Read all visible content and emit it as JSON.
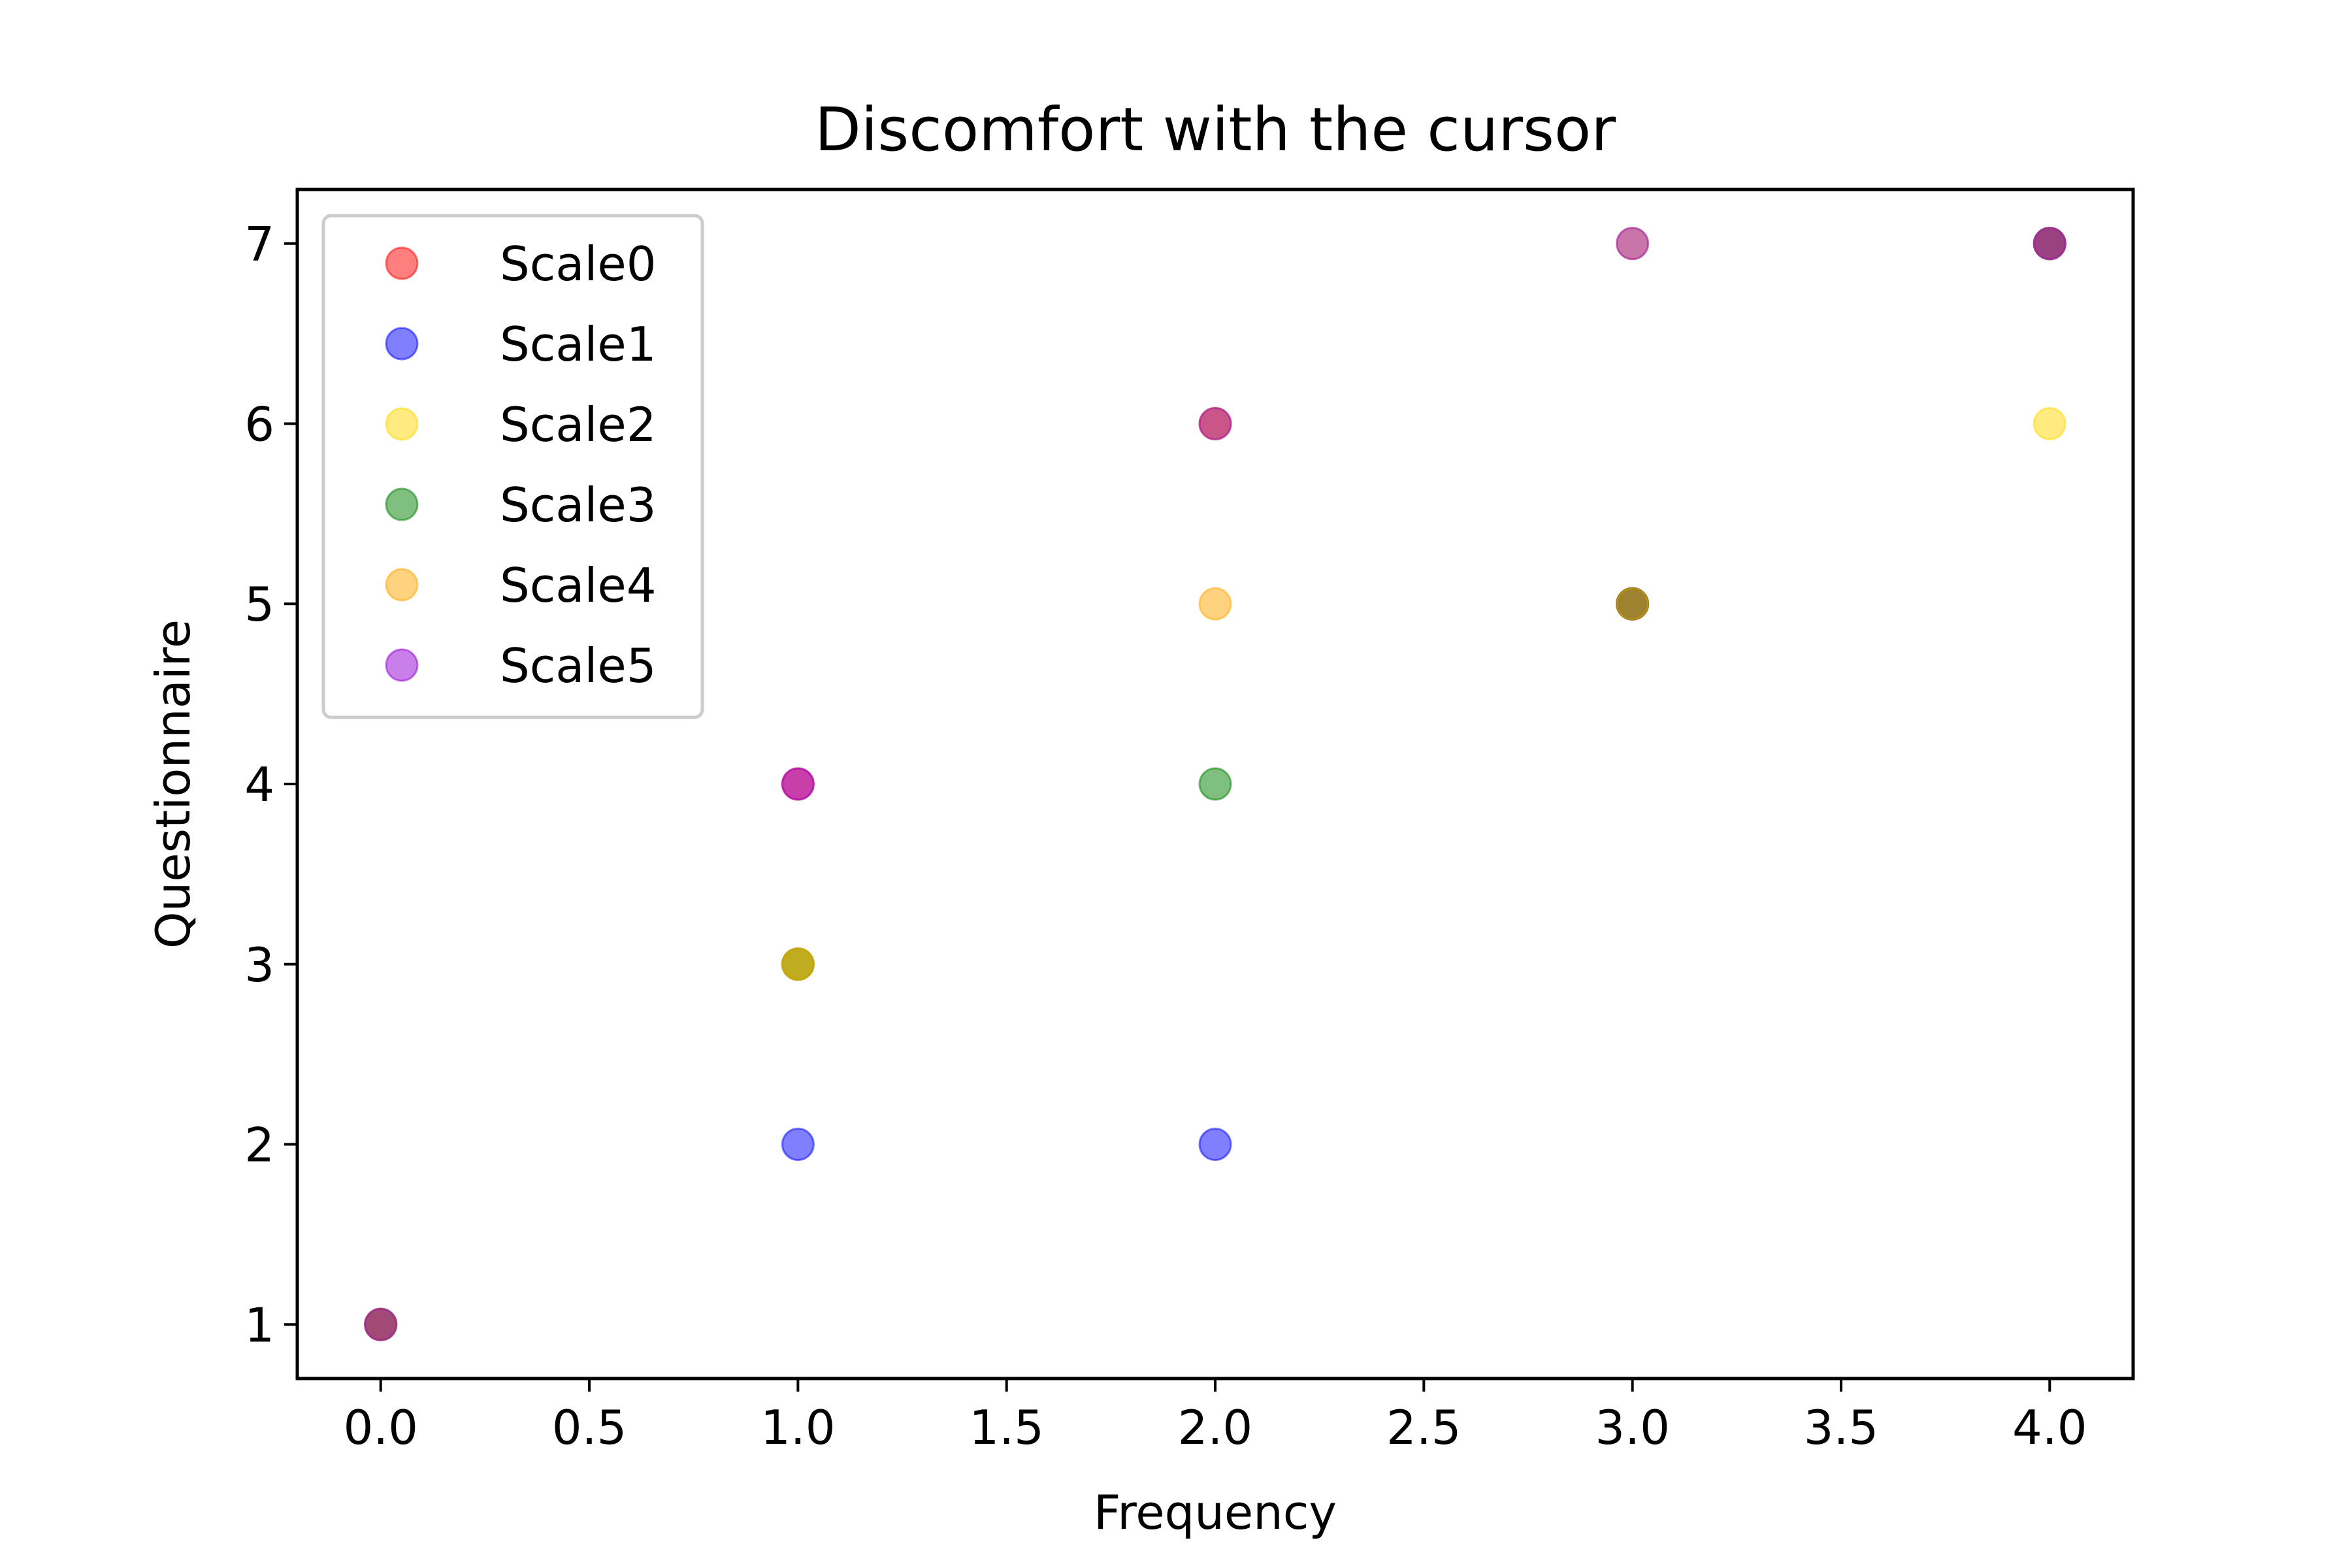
{
  "chart_data": {
    "type": "scatter",
    "title": "Discomfort with the cursor",
    "xlabel": "Frequency",
    "ylabel": "Questionnaire",
    "xlim": [
      -0.2,
      4.2
    ],
    "ylim": [
      0.7,
      7.3
    ],
    "xticks": [
      "0.0",
      "0.5",
      "1.0",
      "1.5",
      "2.0",
      "2.5",
      "3.0",
      "3.5",
      "4.0"
    ],
    "yticks": [
      "1",
      "2",
      "3",
      "4",
      "5",
      "6",
      "7"
    ],
    "grid": false,
    "legend_position": "upper-left",
    "series": [
      {
        "name": "Scale0",
        "color": "#ff0000",
        "x": [
          0,
          1,
          2,
          3,
          4
        ],
        "y": [
          1,
          4,
          6,
          5,
          7
        ]
      },
      {
        "name": "Scale1",
        "color": "#0000ff",
        "x": [
          0,
          1,
          2,
          3,
          4
        ],
        "y": [
          1,
          2,
          2,
          5,
          7
        ]
      },
      {
        "name": "Scale2",
        "color": "#ffd700",
        "x": [
          0,
          1,
          2,
          3,
          4
        ],
        "y": [
          1,
          3,
          6,
          7,
          6
        ]
      },
      {
        "name": "Scale3",
        "color": "#008000",
        "x": [
          0,
          1,
          2,
          3,
          4
        ],
        "y": [
          1,
          3,
          4,
          5,
          7
        ]
      },
      {
        "name": "Scale4",
        "color": "#ffa500",
        "x": [
          0,
          1,
          2,
          3,
          4
        ],
        "y": [
          1,
          3,
          5,
          5,
          7
        ]
      },
      {
        "name": "Scale5",
        "color": "#9400d3",
        "x": [
          0,
          1,
          2,
          3,
          4
        ],
        "y": [
          1,
          4,
          6,
          7,
          7
        ]
      }
    ]
  }
}
